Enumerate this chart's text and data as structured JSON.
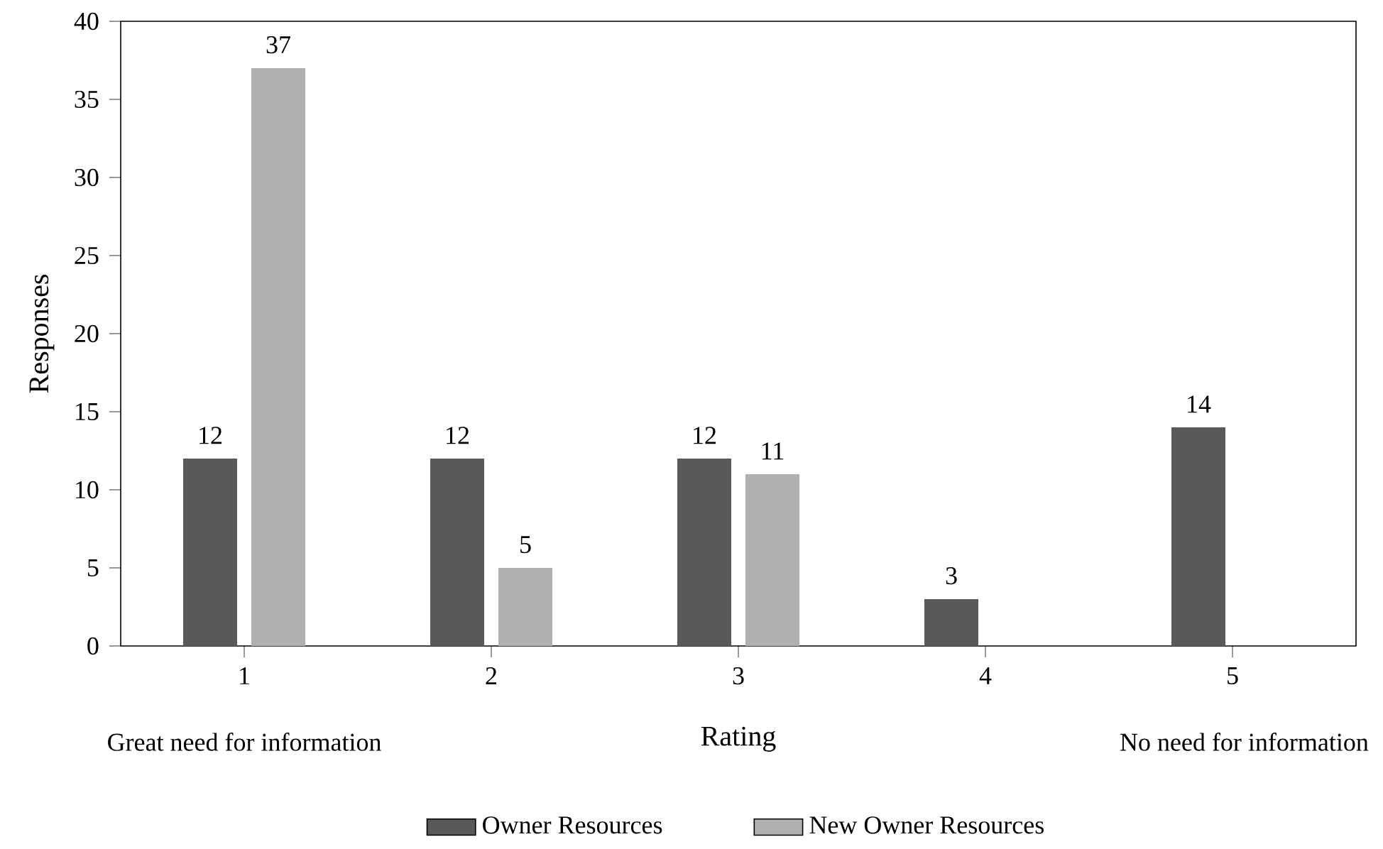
{
  "chart_data": {
    "type": "bar",
    "xlabel": "Rating",
    "ylabel": "Responses",
    "categories": [
      "1",
      "2",
      "3",
      "4",
      "5"
    ],
    "series": [
      {
        "name": "Owner Resources",
        "color": "#595959",
        "values": [
          12,
          12,
          12,
          3,
          14
        ]
      },
      {
        "name": "New Owner Resources",
        "color": "#b0b0b0",
        "values": [
          37,
          5,
          11,
          null,
          null
        ]
      }
    ],
    "ylim": [
      0,
      40
    ],
    "yticks": [
      0,
      5,
      10,
      15,
      20,
      25,
      30,
      35,
      40
    ],
    "data_labels": true,
    "legend": "bottom",
    "grid": false,
    "annotations": [
      "Great need for information",
      "No need for information"
    ]
  }
}
